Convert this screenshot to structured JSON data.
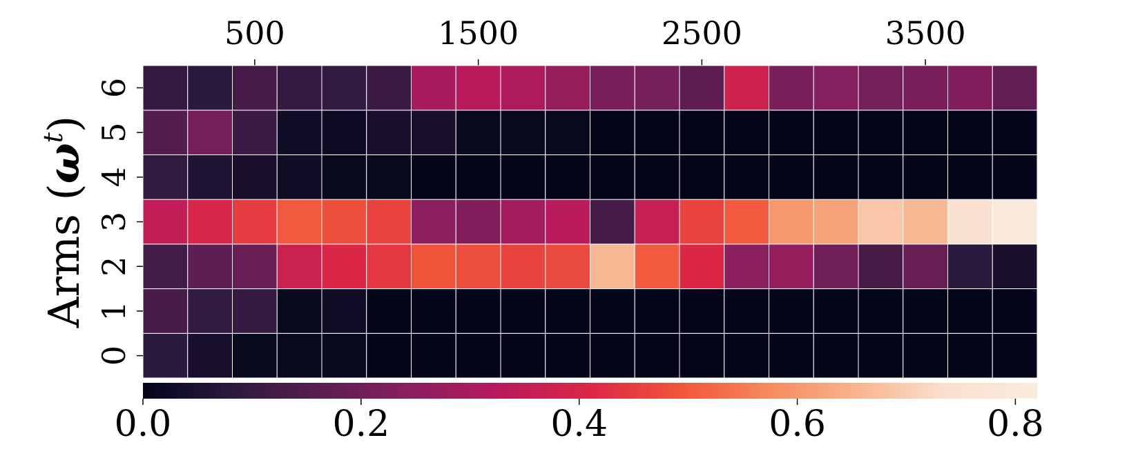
{
  "chart_data": {
    "type": "heatmap",
    "title": "",
    "xlabel": "",
    "ylabel_text": "Arms (",
    "ylabel_symbol": "ω",
    "ylabel_sup": "t",
    "ylabel_close": ")",
    "x_ticks": [
      "500",
      "1500",
      "2500",
      "3500"
    ],
    "x_tick_values": [
      500,
      1500,
      2500,
      3500
    ],
    "x_range": [
      0,
      4000
    ],
    "y_categories": [
      "0",
      "1",
      "2",
      "3",
      "4",
      "5",
      "6"
    ],
    "n_columns": 20,
    "values_by_row": {
      "6": [
        0.1,
        0.08,
        0.13,
        0.1,
        0.09,
        0.11,
        0.3,
        0.33,
        0.31,
        0.27,
        0.22,
        0.21,
        0.17,
        0.38,
        0.22,
        0.24,
        0.21,
        0.22,
        0.23,
        0.18
      ],
      "5": [
        0.15,
        0.21,
        0.11,
        0.03,
        0.02,
        0.04,
        0.04,
        0.01,
        0.01,
        0.01,
        0.0,
        0.0,
        0.0,
        0.0,
        0.0,
        0.0,
        0.0,
        0.0,
        0.0,
        0.0
      ],
      "4": [
        0.09,
        0.06,
        0.04,
        0.03,
        0.01,
        0.01,
        0.0,
        0.0,
        0.0,
        0.0,
        0.0,
        0.0,
        0.0,
        0.0,
        0.0,
        0.0,
        0.0,
        0.0,
        0.0,
        0.0
      ],
      "3": [
        0.35,
        0.4,
        0.45,
        0.5,
        0.48,
        0.46,
        0.25,
        0.23,
        0.29,
        0.33,
        0.13,
        0.36,
        0.46,
        0.5,
        0.6,
        0.62,
        0.69,
        0.66,
        0.75,
        0.81
      ],
      "2": [
        0.12,
        0.17,
        0.19,
        0.37,
        0.41,
        0.44,
        0.49,
        0.48,
        0.46,
        0.47,
        0.66,
        0.5,
        0.41,
        0.25,
        0.27,
        0.2,
        0.13,
        0.19,
        0.08,
        0.04
      ],
      "1": [
        0.13,
        0.09,
        0.1,
        0.01,
        0.03,
        0.0,
        0.0,
        0.0,
        0.0,
        0.0,
        0.0,
        0.0,
        0.0,
        0.0,
        0.0,
        0.0,
        0.0,
        0.0,
        0.0,
        0.0
      ],
      "0": [
        0.08,
        0.04,
        0.01,
        0.01,
        0.01,
        0.0,
        0.0,
        0.0,
        0.0,
        0.0,
        0.0,
        0.0,
        0.0,
        0.0,
        0.0,
        0.0,
        0.0,
        0.0,
        0.0,
        0.0
      ]
    },
    "colorbar": {
      "range": [
        0.0,
        0.82
      ],
      "ticks": [
        "0.0",
        "0.2",
        "0.4",
        "0.6",
        "0.8"
      ],
      "tick_values": [
        0.0,
        0.2,
        0.4,
        0.6,
        0.8
      ],
      "orientation": "horizontal",
      "placement": "bottom",
      "colormap": "rocket",
      "colormap_stops": [
        "#03051a",
        "#2b1a3d",
        "#5a1e52",
        "#8a1f5e",
        "#b81a5c",
        "#db2747",
        "#f0553a",
        "#f68a5e",
        "#f7b58f",
        "#fae1d0",
        "#faebdd"
      ]
    },
    "grid_line_color": "#ffffff"
  }
}
